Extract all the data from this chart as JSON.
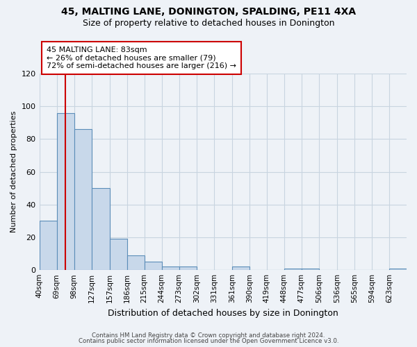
{
  "title": "45, MALTING LANE, DONINGTON, SPALDING, PE11 4XA",
  "subtitle": "Size of property relative to detached houses in Donington",
  "xlabel": "Distribution of detached houses by size in Donington",
  "ylabel": "Number of detached properties",
  "bar_color": "#c8d8ea",
  "bar_edge_color": "#5b8db8",
  "grid_color": "#c8d4e0",
  "background_color": "#eef2f7",
  "bins": [
    "40sqm",
    "69sqm",
    "98sqm",
    "127sqm",
    "157sqm",
    "186sqm",
    "215sqm",
    "244sqm",
    "273sqm",
    "302sqm",
    "331sqm",
    "361sqm",
    "390sqm",
    "419sqm",
    "448sqm",
    "477sqm",
    "506sqm",
    "536sqm",
    "565sqm",
    "594sqm",
    "623sqm"
  ],
  "values": [
    30,
    96,
    86,
    50,
    19,
    9,
    5,
    2,
    2,
    0,
    0,
    2,
    0,
    0,
    1,
    1,
    0,
    0,
    0,
    0,
    1
  ],
  "bin_edges": [
    40,
    69,
    98,
    127,
    157,
    186,
    215,
    244,
    273,
    302,
    331,
    361,
    390,
    419,
    448,
    477,
    506,
    536,
    565,
    594,
    623,
    652
  ],
  "ylim": [
    0,
    120
  ],
  "yticks": [
    0,
    20,
    40,
    60,
    80,
    100,
    120
  ],
  "red_line_x": 83,
  "annotation_title": "45 MALTING LANE: 83sqm",
  "annotation_line1": "← 26% of detached houses are smaller (79)",
  "annotation_line2": "72% of semi-detached houses are larger (216) →",
  "annotation_box_color": "#ffffff",
  "annotation_box_edge_color": "#cc0000",
  "red_line_color": "#cc0000",
  "footer1": "Contains HM Land Registry data © Crown copyright and database right 2024.",
  "footer2": "Contains public sector information licensed under the Open Government Licence v3.0."
}
